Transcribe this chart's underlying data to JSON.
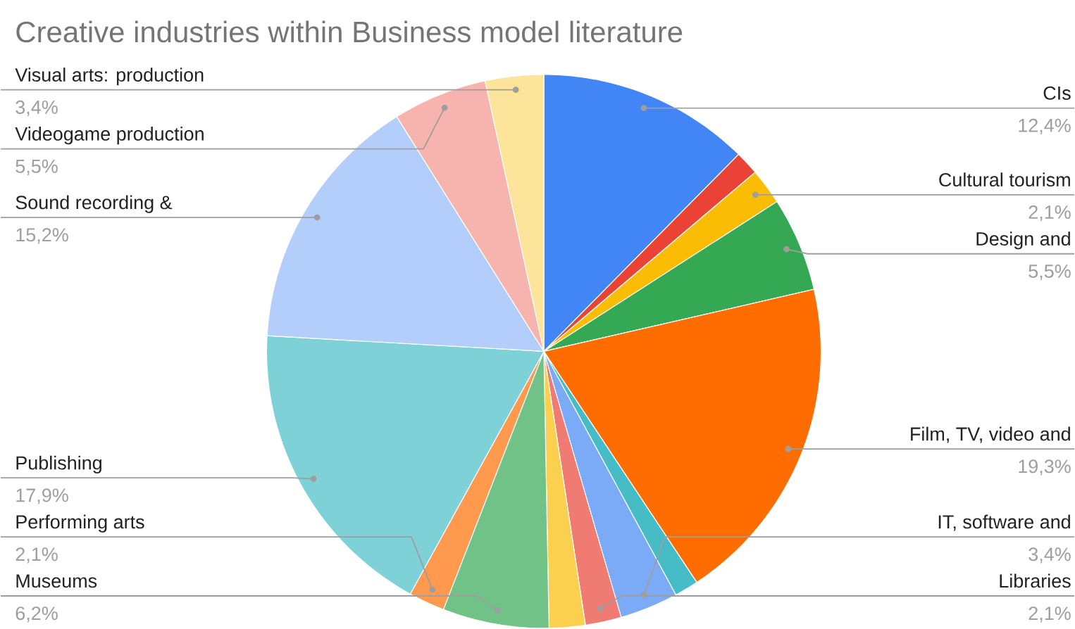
{
  "chart_data": {
    "type": "pie",
    "title": "Creative industries within Business model literature",
    "categories": [
      "CIs",
      null,
      "Cultural tourism",
      "Design and",
      "Film, TV, video and",
      null,
      "IT, software and",
      "Libraries",
      null,
      "Museums",
      "Performing arts",
      "Publishing",
      "Sound recording &",
      "Videogame production",
      "Visual arts: production"
    ],
    "values": [
      12.4,
      1.4,
      2.1,
      5.5,
      19.3,
      1.4,
      3.4,
      2.1,
      2.1,
      6.2,
      2.1,
      17.9,
      15.2,
      5.5,
      3.4
    ],
    "value_labels": [
      "12,4%",
      null,
      "2,1%",
      "5,5%",
      "19,3%",
      null,
      "3,4%",
      "2,1%",
      null,
      "6,2%",
      "2,1%",
      "17,9%",
      "15,2%",
      "5,5%",
      "3,4%"
    ],
    "colors": [
      "#4285f4",
      "#ea4335",
      "#fbbc04",
      "#34a853",
      "#ff6d01",
      "#46bdc6",
      "#7baaf7",
      "#f07b72",
      "#fcd04f",
      "#71c287",
      "#ff994d",
      "#7ed1d7",
      "#b3cefb",
      "#f7b4ae",
      "#fde49b"
    ]
  }
}
